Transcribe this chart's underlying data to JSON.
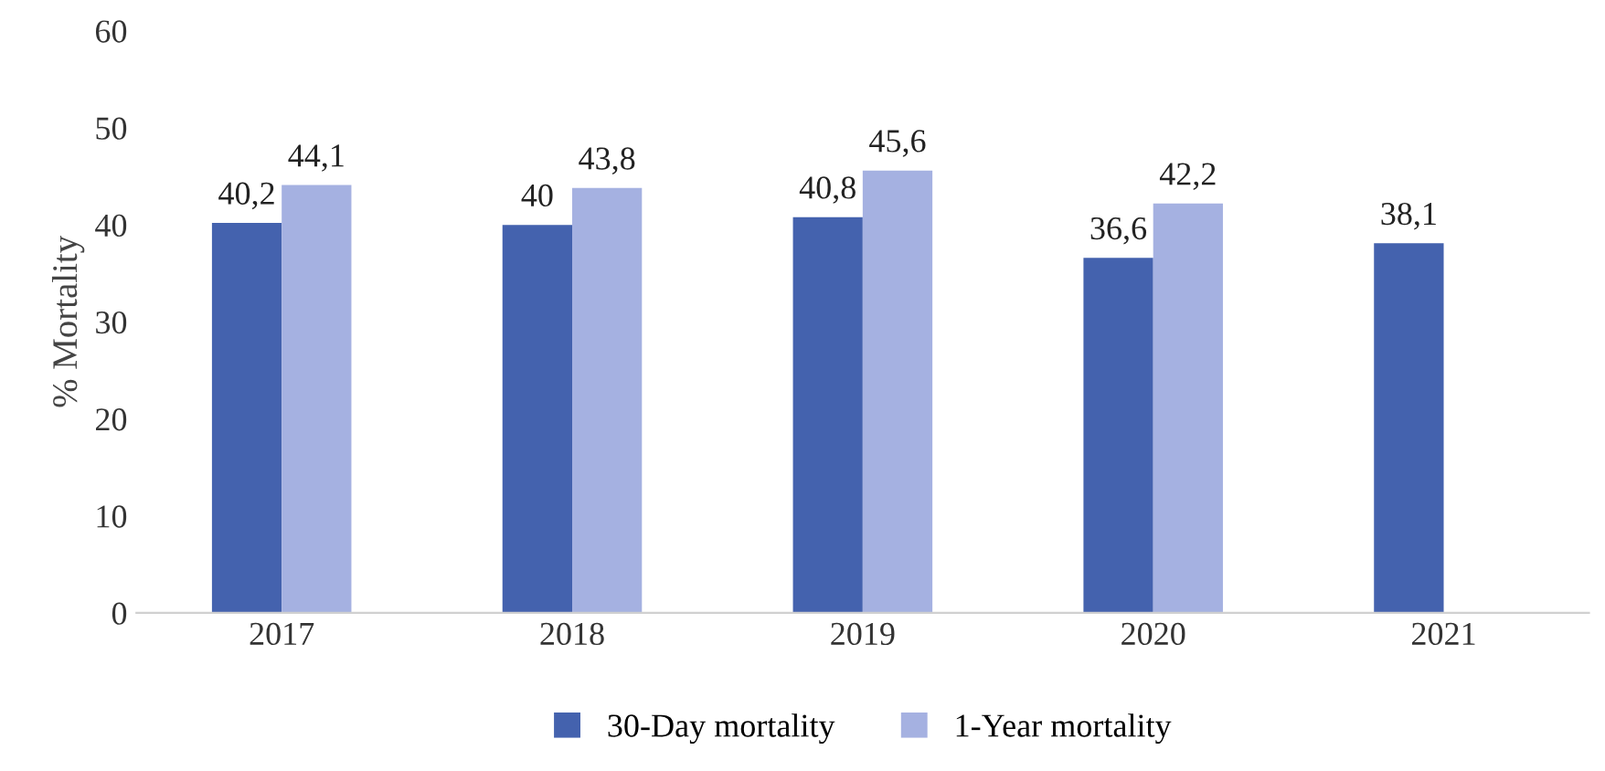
{
  "chart_data": {
    "type": "bar",
    "ylabel": "% Mortality",
    "categories": [
      "2017",
      "2018",
      "2019",
      "2020",
      "2021"
    ],
    "series": [
      {
        "name": "30-Day mortality",
        "color": "#4462ae",
        "values": [
          40.2,
          40,
          40.8,
          36.6,
          38.1
        ],
        "value_labels": [
          "40,2",
          "40",
          "40,8",
          "36,6",
          "38,1"
        ]
      },
      {
        "name": "1-Year mortality",
        "color": "#a5b1e1",
        "values": [
          44.1,
          43.8,
          45.6,
          42.2,
          null
        ],
        "value_labels": [
          "44,1",
          "43,8",
          "45,6",
          "42,2",
          null
        ]
      }
    ],
    "ylim": [
      0,
      60
    ],
    "yticks": [
      0,
      10,
      20,
      30,
      40,
      50,
      60
    ],
    "grid": false,
    "legend": "bottom"
  }
}
